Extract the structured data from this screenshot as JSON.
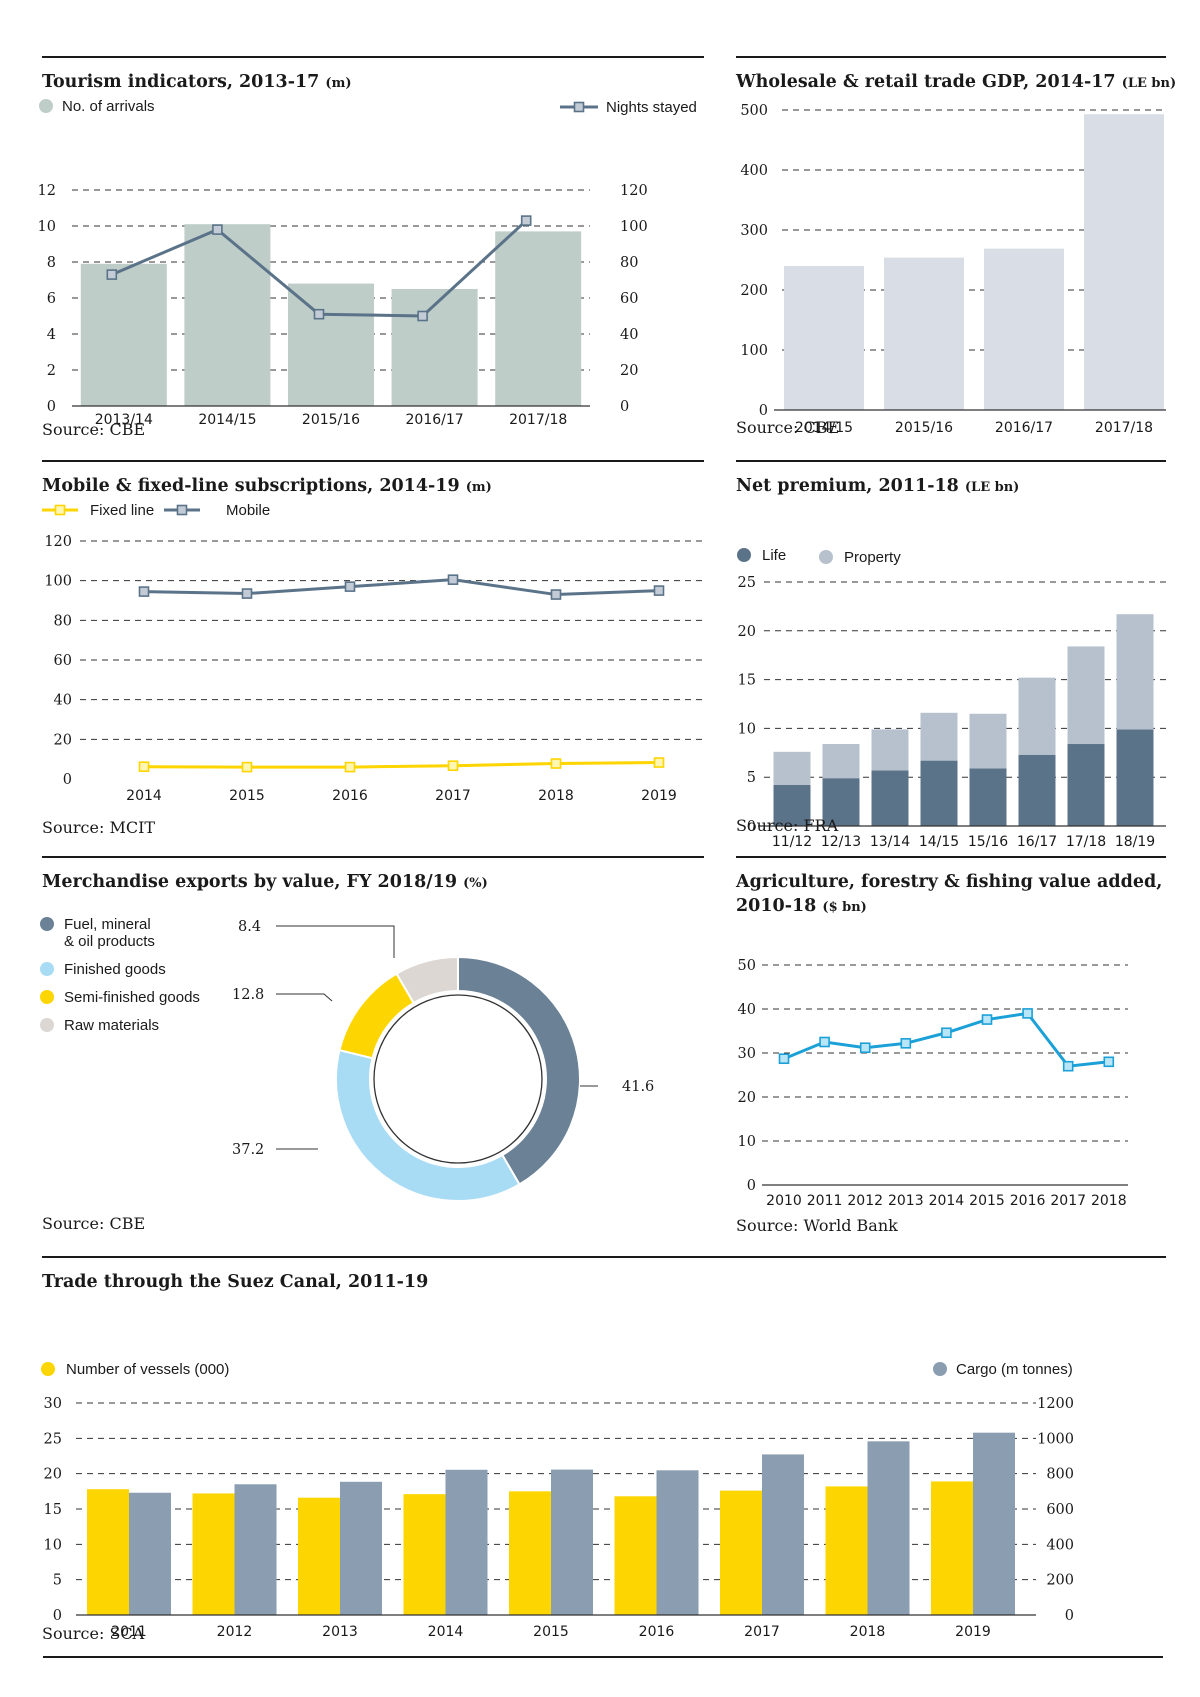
{
  "colors": {
    "arrivals_bar": "#bfcdc9",
    "line_slate": "#5b7389",
    "gdp_bar": "#d9dee6",
    "life": "#5b7389",
    "property": "#b7c1cd",
    "fuel": "#6a8196",
    "finished": "#a8dcf5",
    "semi": "#fdd500",
    "raw": "#dcd7d3",
    "agri_line": "#1ba0d8",
    "yellow": "#fdd500",
    "cargo": "#8b9db0"
  },
  "tourism": {
    "title": "Tourism indicators, 2013-17",
    "unit": "(m)",
    "source": "Source: CBE",
    "chart_data": {
      "type": "bar",
      "categories": [
        "2013/14",
        "2014/15",
        "2015/16",
        "2016/17",
        "2017/18"
      ],
      "series": [
        {
          "name": "No. of arrivals",
          "type": "bar",
          "axis": "left",
          "values": [
            7.9,
            10.1,
            6.8,
            6.5,
            9.7
          ]
        },
        {
          "name": "Nights stayed",
          "type": "line",
          "axis": "right",
          "values": [
            73,
            98,
            51,
            50,
            103
          ]
        }
      ],
      "yticks_left": [
        "0",
        "2",
        "4",
        "6",
        "8",
        "10",
        "12"
      ],
      "yticks_right": [
        "0",
        "20",
        "40",
        "60",
        "80",
        "100",
        "120"
      ],
      "ylim_left": [
        0,
        12
      ],
      "ylim_right": [
        0,
        120
      ],
      "grid": true,
      "legend": "top"
    }
  },
  "wholesale": {
    "title": "Wholesale & retail trade GDP, 2014-17",
    "unit": "(LE bn)",
    "source": "Source: CBE",
    "chart_data": {
      "type": "bar",
      "categories": [
        "2014/15",
        "2015/16",
        "2016/17",
        "2017/18"
      ],
      "values": [
        240,
        254,
        269,
        493
      ],
      "yticks": [
        "0",
        "100",
        "200",
        "300",
        "400",
        "500"
      ],
      "ylim": [
        0,
        500
      ],
      "grid": true
    }
  },
  "mobile": {
    "title": "Mobile & fixed-line subscriptions, 2014-19",
    "unit": "(m)",
    "source": "Source: MCIT",
    "chart_data": {
      "type": "line",
      "categories": [
        "2014",
        "2015",
        "2016",
        "2017",
        "2018",
        "2019"
      ],
      "series": [
        {
          "name": "Fixed line",
          "values": [
            6.2,
            6.0,
            6.0,
            6.7,
            7.8,
            8.3
          ]
        },
        {
          "name": "Mobile",
          "values": [
            94.5,
            93.5,
            97.0,
            100.5,
            93.0,
            95.0
          ]
        }
      ],
      "yticks": [
        "0",
        "20",
        "40",
        "60",
        "80",
        "100",
        "120"
      ],
      "ylim": [
        0,
        120
      ],
      "grid": true,
      "legend": "top-left"
    }
  },
  "premium": {
    "title": "Net premium, 2011-18",
    "unit": "(LE bn)",
    "source": "Source: FRA",
    "chart_data": {
      "type": "bar",
      "stacked": true,
      "categories": [
        "11/12",
        "12/13",
        "13/14",
        "14/15",
        "15/16",
        "16/17",
        "17/18",
        "18/19"
      ],
      "series": [
        {
          "name": "Life",
          "values": [
            4.2,
            4.9,
            5.7,
            6.7,
            5.9,
            7.3,
            8.4,
            9.9
          ]
        },
        {
          "name": "Property",
          "values": [
            3.4,
            3.5,
            4.2,
            4.9,
            5.6,
            7.9,
            10.0,
            11.8
          ]
        }
      ],
      "yticks": [
        "0",
        "5",
        "10",
        "15",
        "20",
        "25"
      ],
      "ylim": [
        0,
        25
      ],
      "grid": true,
      "legend": "top-left"
    }
  },
  "exports": {
    "title": "Merchandise exports by value, FY 2018/19",
    "unit": "(%)",
    "source": "Source: CBE",
    "chart_data": {
      "type": "pie",
      "donut": true,
      "slices": [
        {
          "name": "Fuel, mineral",
          "name2": "& oil products",
          "value": 41.6
        },
        {
          "name": "Finished goods",
          "value": 37.2
        },
        {
          "name": "Semi-finished goods",
          "value": 12.8
        },
        {
          "name": "Raw materials",
          "value": 8.4
        }
      ],
      "labels": [
        "41.6",
        "37.2",
        "12.8",
        "8.4"
      ],
      "legend": "left"
    }
  },
  "agriculture": {
    "title": "Agriculture, forestry & fishing value added,",
    "title2": "2010-18",
    "unit": "($ bn)",
    "source": "Source: World Bank",
    "chart_data": {
      "type": "line",
      "categories": [
        "2010",
        "2011",
        "2012",
        "2013",
        "2014",
        "2015",
        "2016",
        "2017",
        "2018"
      ],
      "values": [
        28.7,
        32.5,
        31.2,
        32.2,
        34.6,
        37.6,
        39.0,
        27.0,
        28.0
      ],
      "yticks": [
        "0",
        "10",
        "20",
        "30",
        "40",
        "50"
      ],
      "ylim": [
        0,
        50
      ],
      "grid": true
    }
  },
  "suez": {
    "title": "Trade through the Suez Canal, 2011-19",
    "source": "Source: SCA",
    "chart_data": {
      "type": "bar",
      "categories": [
        "2011",
        "2012",
        "2013",
        "2014",
        "2015",
        "2016",
        "2017",
        "2018",
        "2019"
      ],
      "series": [
        {
          "name": "Number of vessels (000)",
          "axis": "left",
          "values": [
            17.8,
            17.2,
            16.6,
            17.1,
            17.5,
            16.8,
            17.6,
            18.2,
            18.9
          ]
        },
        {
          "name": "Cargo (m tonnes)",
          "axis": "right",
          "values": [
            692,
            740,
            754,
            822,
            823,
            819,
            909,
            983,
            1032
          ]
        }
      ],
      "yticks_left": [
        "0",
        "5",
        "10",
        "15",
        "20",
        "25",
        "30"
      ],
      "yticks_right": [
        "0",
        "200",
        "400",
        "600",
        "800",
        "1000",
        "1200"
      ],
      "ylim_left": [
        0,
        30
      ],
      "ylim_right": [
        0,
        1200
      ],
      "grid": true,
      "legend": "top"
    }
  }
}
